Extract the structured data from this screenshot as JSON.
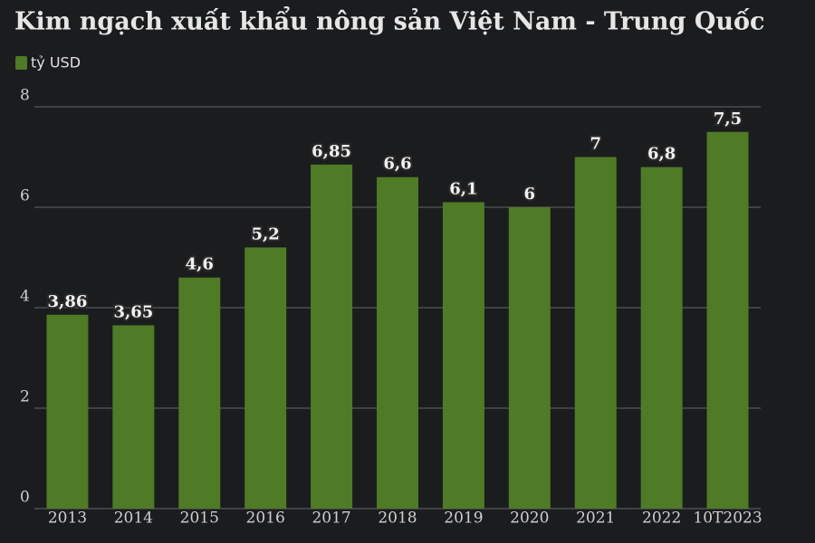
{
  "chart_data": {
    "type": "bar",
    "title": "Kim ngạch xuất khẩu nông sản Việt Nam - Trung Quốc",
    "categories": [
      "2013",
      "2014",
      "2015",
      "2016",
      "2017",
      "2018",
      "2019",
      "2020",
      "2021",
      "2022",
      "10T2023"
    ],
    "series": [
      {
        "name": "tỷ USD",
        "color": "#4f7a26",
        "values": [
          3.86,
          3.65,
          4.6,
          5.2,
          6.85,
          6.6,
          6.1,
          6,
          7,
          6.8,
          7.5
        ],
        "value_labels": [
          "3,86",
          "3,65",
          "4,6",
          "5,2",
          "6,85",
          "6,6",
          "6,1",
          "6",
          "7",
          "6,8",
          "7,5"
        ]
      }
    ],
    "ylim": [
      0,
      8
    ],
    "yticks": [
      0,
      2,
      4,
      6,
      8
    ],
    "grid": true,
    "legend": "top-left"
  }
}
